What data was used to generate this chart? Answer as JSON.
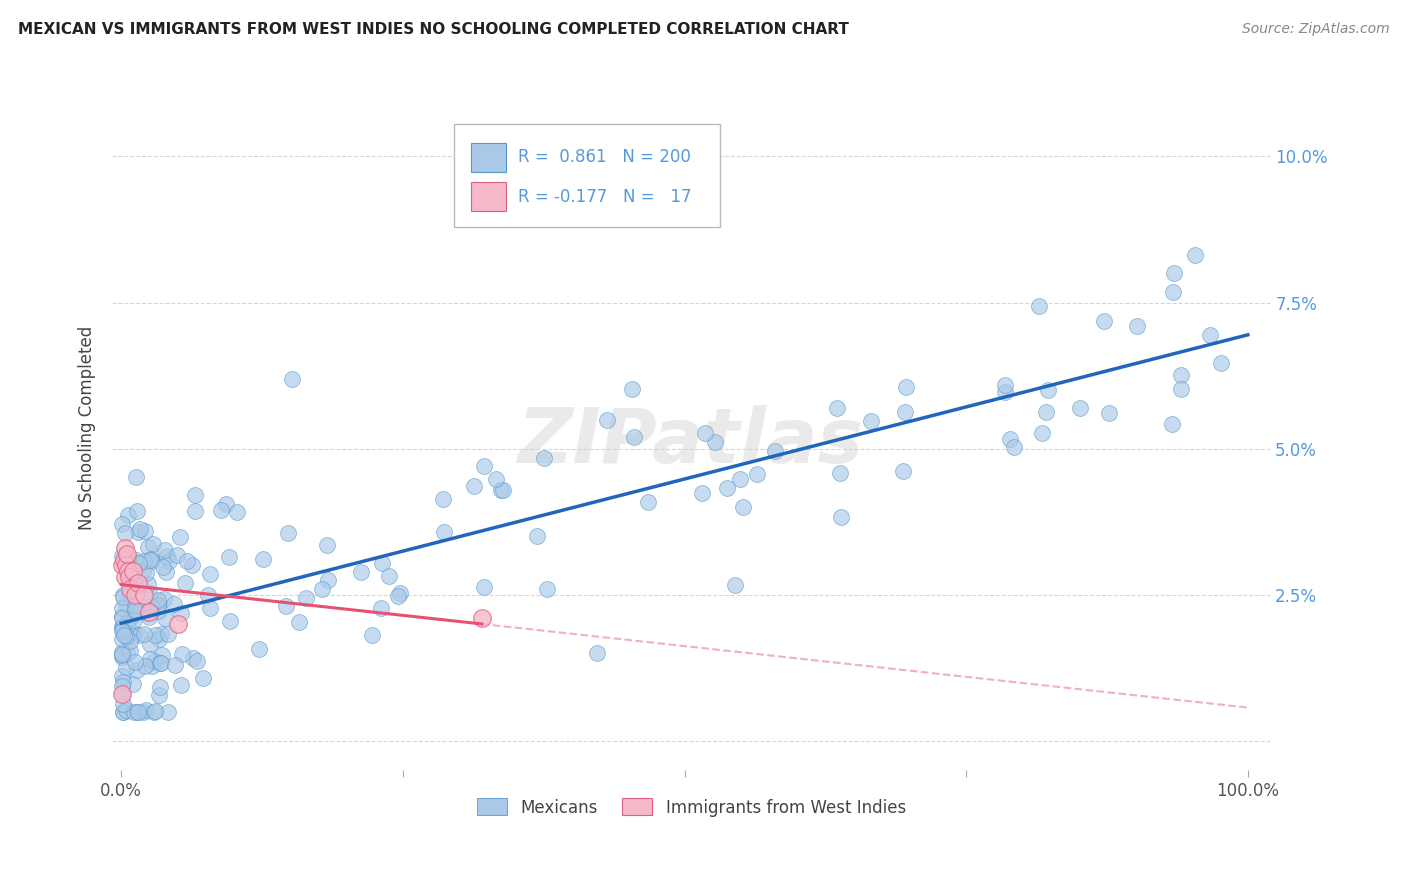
{
  "title": "MEXICAN VS IMMIGRANTS FROM WEST INDIES NO SCHOOLING COMPLETED CORRELATION CHART",
  "source": "Source: ZipAtlas.com",
  "ylabel": "No Schooling Completed",
  "watermark": "ZIPatlas",
  "blue_R": 0.861,
  "blue_N": 200,
  "pink_R": -0.177,
  "pink_N": 17,
  "blue_color": "#aac9e8",
  "blue_edge_color": "#5599cc",
  "blue_line_color": "#2266bb",
  "pink_color": "#f5b8c8",
  "pink_edge_color": "#e06080",
  "pink_line_color": "#e85070",
  "pink_line_dashed_color": "#f0b0c0",
  "background_color": "#ffffff",
  "grid_color": "#cccccc",
  "legend_label_blue": "Mexicans",
  "legend_label_pink": "Immigrants from West Indies",
  "ytick_color": "#5599dd",
  "xtick_color": "#555555",
  "title_color": "#222222",
  "source_color": "#888888",
  "ylabel_color": "#444444",
  "blue_line_intercept": 0.019,
  "blue_line_slope": 0.048,
  "pink_line_intercept": 0.028,
  "pink_line_slope": -0.025
}
